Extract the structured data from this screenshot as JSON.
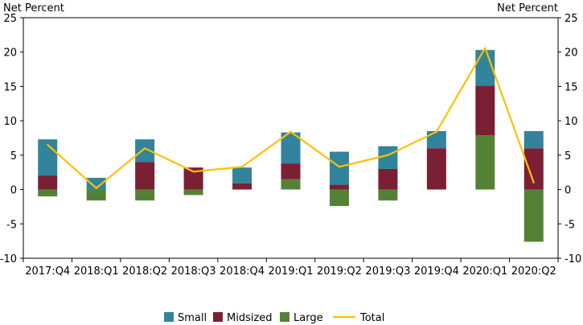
{
  "chart_data": {
    "type": "bar",
    "ylabel_left": "Net Percent",
    "ylabel_right": "Net Percent",
    "ylim": [
      -10,
      25
    ],
    "yticks": [
      -10,
      -5,
      0,
      5,
      10,
      15,
      20,
      25
    ],
    "grid": false,
    "legend_position": "bottom",
    "categories": [
      "2017:Q4",
      "2018:Q1",
      "2018:Q2",
      "2018:Q3",
      "2018:Q4",
      "2019:Q1",
      "2019:Q2",
      "2019:Q3",
      "2019:Q4",
      "2020:Q1",
      "2020:Q2"
    ],
    "series": [
      {
        "name": "Large",
        "kind": "stacked-bar",
        "color": "#548235",
        "values": [
          -1.0,
          -1.6,
          -1.6,
          -0.8,
          0.0,
          1.5,
          -2.4,
          -1.6,
          0.0,
          7.9,
          -7.6
        ]
      },
      {
        "name": "Midsized",
        "kind": "stacked-bar",
        "color": "#7b1f35",
        "values": [
          2.0,
          0.0,
          4.0,
          3.2,
          0.9,
          2.3,
          0.7,
          3.0,
          6.0,
          7.2,
          6.0
        ]
      },
      {
        "name": "Small",
        "kind": "stacked-bar",
        "color": "#31849b",
        "values": [
          5.3,
          1.7,
          3.3,
          0.0,
          2.3,
          4.5,
          4.8,
          3.3,
          2.5,
          5.2,
          2.5
        ]
      },
      {
        "name": "Total",
        "kind": "line",
        "color": "#ffc000",
        "values": [
          6.5,
          0.2,
          6.0,
          2.6,
          3.3,
          8.4,
          3.3,
          5.0,
          8.4,
          20.6,
          1.0
        ]
      }
    ]
  }
}
